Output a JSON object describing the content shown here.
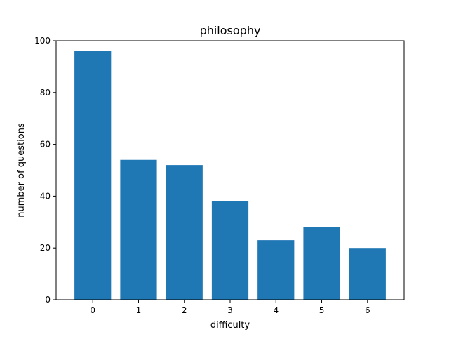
{
  "chart_data": {
    "type": "bar",
    "title": "philosophy",
    "xlabel": "difficulty",
    "ylabel": "number of questions",
    "categories": [
      "0",
      "1",
      "2",
      "3",
      "4",
      "5",
      "6"
    ],
    "values": [
      96,
      54,
      52,
      38,
      23,
      28,
      20
    ],
    "ylim": [
      0,
      100
    ],
    "yticks": [
      "0",
      "20",
      "40",
      "60",
      "80",
      "100"
    ],
    "bar_color": "#1f77b4",
    "grid": false,
    "legend": "none"
  }
}
